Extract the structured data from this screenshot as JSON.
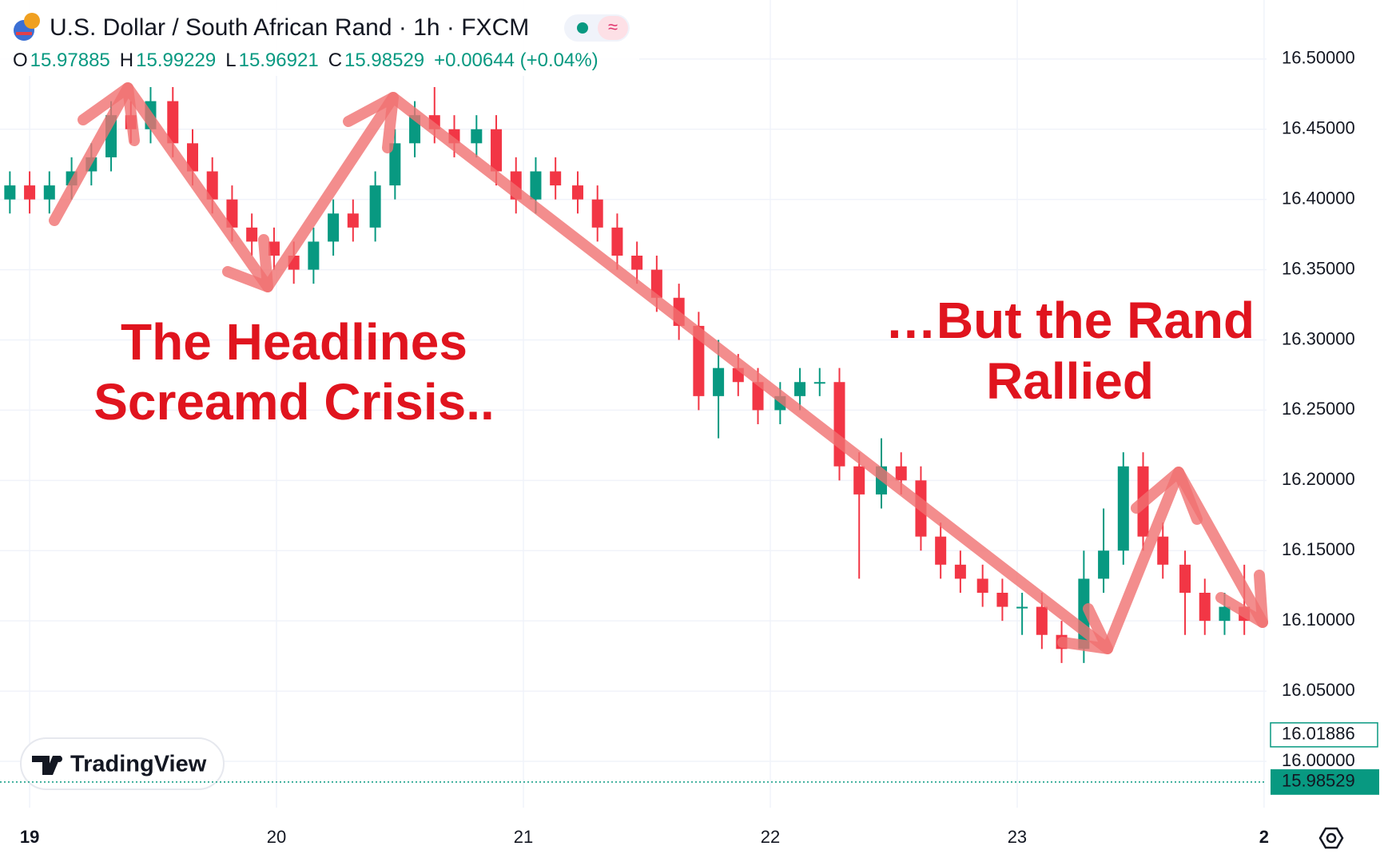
{
  "chart_data": {
    "type": "candlestick",
    "title": "U.S. Dollar / South African Rand · 1h · FXCM",
    "ohlc_header": {
      "labels": [
        "O",
        "H",
        "L",
        "C"
      ],
      "values": [
        15.97885,
        15.99229,
        15.96921,
        15.98529
      ],
      "change": "+0.00644 (+0.04%)"
    },
    "annotations": [
      "The Headlines",
      "Screamd Crisis..",
      "…But the Rand",
      "Rallied"
    ],
    "watermark": "TradingView",
    "marker_price": 16.01886,
    "last_price": 15.98529,
    "x": [
      18.92,
      19.0,
      19.08,
      19.17,
      19.25,
      19.33,
      19.41,
      19.49,
      19.58,
      19.66,
      19.74,
      19.82,
      19.9,
      19.99,
      20.07,
      20.15,
      20.23,
      20.31,
      20.4,
      20.48,
      20.56,
      20.64,
      20.72,
      20.81,
      20.89,
      20.97,
      21.05,
      21.13,
      21.22,
      21.3,
      21.38,
      21.46,
      21.54,
      21.63,
      21.71,
      21.79,
      21.87,
      21.95,
      22.04,
      22.12,
      22.2,
      22.28,
      22.36,
      22.45,
      22.53,
      22.61,
      22.69,
      22.77,
      22.86,
      22.94,
      23.02,
      23.1,
      23.18,
      23.27,
      23.35,
      23.43,
      23.51,
      23.59,
      23.68,
      23.76,
      23.84,
      23.92
    ],
    "open": [
      16.4,
      16.41,
      16.4,
      16.41,
      16.42,
      16.43,
      16.46,
      16.45,
      16.47,
      16.44,
      16.42,
      16.4,
      16.38,
      16.37,
      16.36,
      16.35,
      16.37,
      16.39,
      16.38,
      16.41,
      16.44,
      16.46,
      16.45,
      16.44,
      16.45,
      16.42,
      16.4,
      16.42,
      16.41,
      16.4,
      16.38,
      16.36,
      16.35,
      16.33,
      16.31,
      16.26,
      16.28,
      16.27,
      16.25,
      16.26,
      16.27,
      16.27,
      16.21,
      16.19,
      16.21,
      16.2,
      16.16,
      16.14,
      16.13,
      16.12,
      16.11,
      16.11,
      16.09,
      16.08,
      16.13,
      16.15,
      16.21,
      16.16,
      16.14,
      16.12,
      16.1,
      16.11
    ],
    "high": [
      16.42,
      16.42,
      16.42,
      16.43,
      16.44,
      16.47,
      16.47,
      16.48,
      16.48,
      16.45,
      16.43,
      16.41,
      16.39,
      16.38,
      16.37,
      16.38,
      16.4,
      16.4,
      16.42,
      16.45,
      16.47,
      16.48,
      16.46,
      16.46,
      16.46,
      16.43,
      16.43,
      16.43,
      16.42,
      16.41,
      16.39,
      16.37,
      16.36,
      16.34,
      16.32,
      16.3,
      16.29,
      16.28,
      16.27,
      16.28,
      16.28,
      16.28,
      16.22,
      16.23,
      16.22,
      16.21,
      16.17,
      16.15,
      16.14,
      16.13,
      16.12,
      16.12,
      16.1,
      16.15,
      16.18,
      16.22,
      16.22,
      16.17,
      16.15,
      16.13,
      16.12,
      16.14
    ],
    "low": [
      16.39,
      16.39,
      16.39,
      16.4,
      16.41,
      16.42,
      16.44,
      16.44,
      16.43,
      16.41,
      16.39,
      16.37,
      16.36,
      16.35,
      16.34,
      16.34,
      16.36,
      16.37,
      16.37,
      16.4,
      16.43,
      16.44,
      16.43,
      16.43,
      16.41,
      16.39,
      16.39,
      16.4,
      16.39,
      16.37,
      16.35,
      16.34,
      16.32,
      16.3,
      16.25,
      16.23,
      16.26,
      16.24,
      16.24,
      16.25,
      16.26,
      16.2,
      16.13,
      16.18,
      16.19,
      16.15,
      16.13,
      16.12,
      16.11,
      16.1,
      16.09,
      16.08,
      16.07,
      16.07,
      16.12,
      16.14,
      16.15,
      16.13,
      16.09,
      16.09,
      16.09,
      16.09
    ],
    "close": [
      16.41,
      16.4,
      16.41,
      16.42,
      16.43,
      16.46,
      16.45,
      16.47,
      16.44,
      16.42,
      16.4,
      16.38,
      16.37,
      16.36,
      16.35,
      16.37,
      16.39,
      16.38,
      16.41,
      16.44,
      16.46,
      16.45,
      16.44,
      16.45,
      16.42,
      16.4,
      16.42,
      16.41,
      16.4,
      16.38,
      16.36,
      16.35,
      16.33,
      16.31,
      16.26,
      16.28,
      16.27,
      16.25,
      16.26,
      16.27,
      16.27,
      16.21,
      16.19,
      16.21,
      16.2,
      16.16,
      16.14,
      16.13,
      16.12,
      16.11,
      16.11,
      16.09,
      16.08,
      16.13,
      16.15,
      16.21,
      16.16,
      16.14,
      16.12,
      16.1,
      16.11,
      16.1
    ],
    "up_color": "#089981",
    "down_color": "#f23645",
    "xlim": [
      18.88,
      24.01
    ],
    "xticks": [
      19,
      20,
      21,
      22,
      23,
      {
        "value": 24,
        "label": "2"
      }
    ],
    "ylim": [
      15.967,
      16.542
    ],
    "yticks": [
      {
        "value": 16.0,
        "label": "16.00000"
      },
      {
        "value": 16.05,
        "label": "16.05000"
      },
      {
        "value": 16.1,
        "label": "16.10000"
      },
      {
        "value": 16.15,
        "label": "16.15000"
      },
      {
        "value": 16.2,
        "label": "16.20000"
      },
      {
        "value": 16.25,
        "label": "16.25000"
      },
      {
        "value": 16.3,
        "label": "16.30000"
      },
      {
        "value": 16.35,
        "label": "16.35000"
      },
      {
        "value": 16.4,
        "label": "16.40000"
      },
      {
        "value": 16.45,
        "label": "16.45000"
      },
      {
        "value": 16.5,
        "label": "16.50000"
      }
    ],
    "grid": true
  }
}
